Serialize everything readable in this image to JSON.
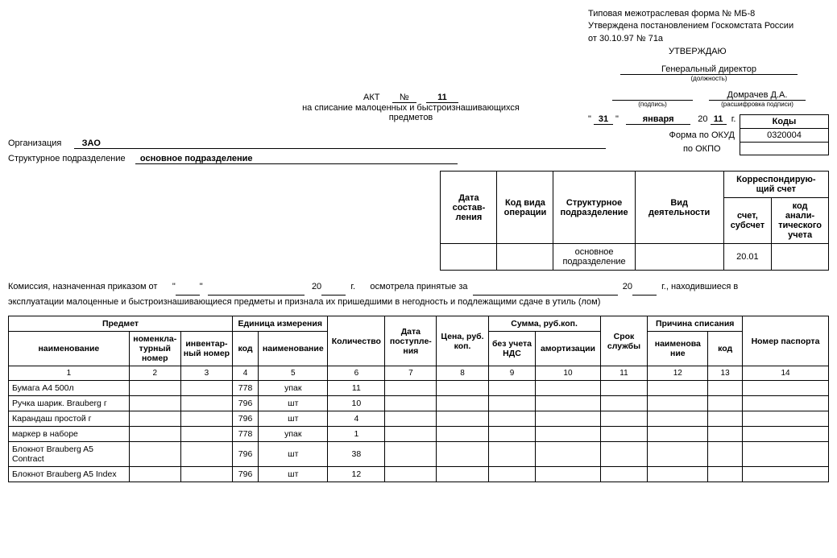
{
  "header": {
    "line1": "Типовая межотраслевая форма № МБ-8",
    "line2": "Утверждена постановлением Госкомстата России",
    "line3": "от 30.10.97 № 71а",
    "approve": "УТВЕРЖДАЮ",
    "position": "Генеральный директор",
    "position_caption": "(должность)",
    "signature_caption": "(подпись)",
    "decrypt_name": "Домрачев Д.А.",
    "decrypt_caption": "(расшифровка подписи)",
    "date_day": "31",
    "date_month": "января",
    "date_yy_prefix": "20",
    "date_yy": "11",
    "date_suffix": "г."
  },
  "title": {
    "akt": "АКТ",
    "no_label": "№",
    "no": "11",
    "sub1": "на списание малоценных и быстроизнашивающихся",
    "sub2": "предметов"
  },
  "org": {
    "label": "Организация",
    "value": "ЗАО",
    "subdiv_label": "Структурное подразделение",
    "subdiv_value": "основное подразделение"
  },
  "codes": {
    "codes_header": "Коды",
    "okud_label": "Форма по ОКУД",
    "okud": "0320004",
    "okpo_label": "по ОКПО",
    "okpo": ""
  },
  "meta": {
    "h1": "Дата состав-\nления",
    "h2": "Код вида операции",
    "h3": "Структурное подразделение",
    "h4": "Вид  деятельности",
    "h5": "Корреспондирую-\nщий счет",
    "h5a": "счет, субсчет",
    "h5b": "код анали-\nтического учета",
    "v3": "основное подразделение",
    "v5a": "20.01"
  },
  "commission": {
    "text1": "Комиссия, назначенная приказом от",
    "quote": "\"",
    "year_prefix": "20",
    "g": "г.",
    "text2": "осмотрела принятые за",
    "text3": "г., находившиеся в",
    "text4": "эксплуатации малоценные и быстроизнашивающиеся предметы и признала их пришедшими в негодность и подлежащими сдаче в утиль (лом)"
  },
  "table": {
    "headers": {
      "predmet": "Предмет",
      "name": "наименование",
      "nomnum": "номенкла-\nтурный номер",
      "invnum": "инвентар-\nный номер",
      "unit": "Единица измерения",
      "code": "код",
      "unitname": "наименование",
      "qty": "Количество",
      "date": "Дата поступле-\nния",
      "price": "Цена, руб. коп.",
      "sum": "Сумма, руб.коп.",
      "sum_nds": "без учета НДС",
      "sum_amort": "амортизации",
      "srok": "Срок службы",
      "reason": "Причина списания",
      "reason_name": "наименова\nние",
      "reason_code": "код",
      "passport": "Номер паспорта"
    },
    "nums": [
      "1",
      "2",
      "3",
      "4",
      "5",
      "6",
      "7",
      "8",
      "9",
      "10",
      "11",
      "12",
      "13",
      "14"
    ],
    "rows": [
      {
        "name": "Бумага А4 500л",
        "code": "778",
        "unit": "упак",
        "qty": "11"
      },
      {
        "name": "Ручка шарик. Brauberg г",
        "code": "796",
        "unit": "шт",
        "qty": "10"
      },
      {
        "name": "Карандаш простой г",
        "code": "796",
        "unit": "шт",
        "qty": "4"
      },
      {
        "name": "маркер в наборе",
        "code": "778",
        "unit": "упак",
        "qty": "1"
      },
      {
        "name": "Блокнот Brauberg A5 Contract",
        "code": "796",
        "unit": "шт",
        "qty": "38"
      },
      {
        "name": "Блокнот Brauberg A5 Index",
        "code": "796",
        "unit": "шт",
        "qty": "12"
      }
    ]
  }
}
